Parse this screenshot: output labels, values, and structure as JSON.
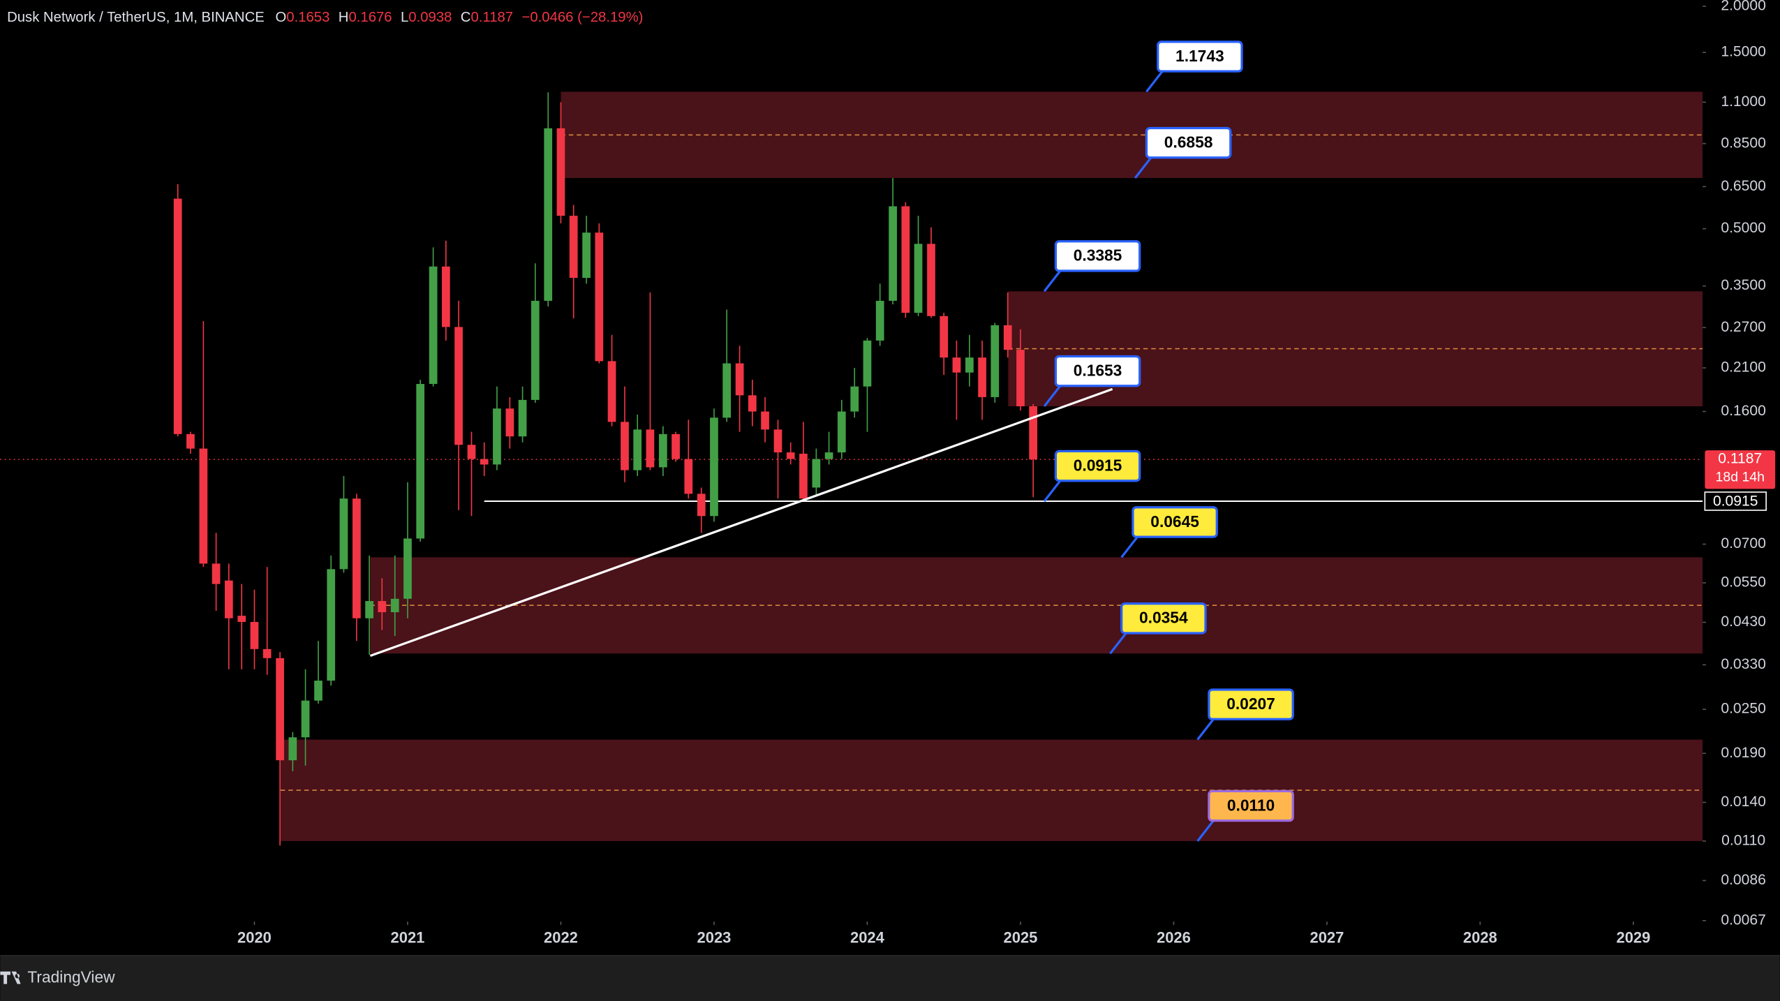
{
  "chart_data": {
    "type": "candlestick",
    "title": "Dusk Network / TetherUS, 1M, BINANCE",
    "ohlc_keys": [
      "O",
      "H",
      "L",
      "C"
    ],
    "change_label": "−0.0466 (−28.19%)",
    "countdown": "18d 14h",
    "brand": "TradingView",
    "log_scale": true,
    "grid": false,
    "up_color": "#43a047",
    "down_color": "#f23645",
    "zone_color": "#4a1219",
    "xlim": [
      2018.341,
      2029.452
    ],
    "ylim": [
      0.00666,
      2.08
    ],
    "xticks": [
      2020,
      2021,
      2022,
      2023,
      2024,
      2025,
      2026,
      2027,
      2028,
      2029
    ],
    "yticks": [
      {
        "value": 2,
        "label": "2.0000"
      },
      {
        "value": 1.5,
        "label": "1.5000"
      },
      {
        "value": 1.1,
        "label": "1.1000"
      },
      {
        "value": 0.85,
        "label": "0.8500"
      },
      {
        "value": 0.65,
        "label": "0.6500"
      },
      {
        "value": 0.5,
        "label": "0.5000"
      },
      {
        "value": 0.35,
        "label": "0.3500"
      },
      {
        "value": 0.27,
        "label": "0.2700"
      },
      {
        "value": 0.21,
        "label": "0.2100"
      },
      {
        "value": 0.16,
        "label": "0.1600"
      },
      {
        "value": 0.07,
        "label": "0.0700"
      },
      {
        "value": 0.055,
        "label": "0.0550"
      },
      {
        "value": 0.043,
        "label": "0.0430"
      },
      {
        "value": 0.033,
        "label": "0.0330"
      },
      {
        "value": 0.025,
        "label": "0.0250"
      },
      {
        "value": 0.019,
        "label": "0.0190"
      },
      {
        "value": 0.014,
        "label": "0.0140"
      },
      {
        "value": 0.011,
        "label": "0.0110"
      },
      0.0086,
      0.0067
    ],
    "x": [
      2019.5,
      2019.583,
      2019.667,
      2019.75,
      2019.833,
      2019.917,
      2020,
      2020.083,
      2020.167,
      2020.25,
      2020.333,
      2020.417,
      2020.5,
      2020.583,
      2020.667,
      2020.75,
      2020.833,
      2020.917,
      2021,
      2021.083,
      2021.167,
      2021.25,
      2021.333,
      2021.417,
      2021.5,
      2021.583,
      2021.667,
      2021.75,
      2021.833,
      2021.917,
      2022,
      2022.083,
      2022.167,
      2022.25,
      2022.333,
      2022.417,
      2022.5,
      2022.583,
      2022.667,
      2022.75,
      2022.833,
      2022.917,
      2023,
      2023.083,
      2023.167,
      2023.25,
      2023.333,
      2023.417,
      2023.5,
      2023.583,
      2023.667,
      2023.75,
      2023.833,
      2023.917,
      2024,
      2024.083,
      2024.167,
      2024.25,
      2024.333,
      2024.417,
      2024.5,
      2024.583,
      2024.667,
      2024.75,
      2024.833,
      2024.917,
      2025,
      2025.083
    ],
    "open": [
      0.603,
      0.139,
      0.127,
      0.062,
      0.0558,
      0.0448,
      0.0431,
      0.0364,
      0.0344,
      0.0182,
      0.021,
      0.0264,
      0.0299,
      0.0599,
      0.093,
      0.0441,
      0.0491,
      0.0458,
      0.0498,
      0.0725,
      0.19,
      0.395,
      0.271,
      0.13,
      0.119,
      0.115,
      0.163,
      0.137,
      0.172,
      0.319,
      0.935,
      0.542,
      0.368,
      0.488,
      0.219,
      0.15,
      0.111,
      0.143,
      0.113,
      0.139,
      0.119,
      0.0958,
      0.0834,
      0.154,
      0.216,
      0.177,
      0.16,
      0.143,
      0.124,
      0.123,
      0.0996,
      0.119,
      0.124,
      0.16,
      0.187,
      0.249,
      0.319,
      0.575,
      0.296,
      0.455,
      0.29,
      0.224,
      0.204,
      0.224,
      0.175,
      0.274,
      0.235,
      0.1653
    ],
    "high": [
      0.66,
      0.141,
      0.281,
      0.0751,
      0.062,
      0.0546,
      0.0527,
      0.0607,
      0.0357,
      0.0217,
      0.0321,
      0.0383,
      0.0652,
      0.107,
      0.0958,
      0.0652,
      0.0566,
      0.0652,
      0.103,
      0.195,
      0.445,
      0.464,
      0.319,
      0.141,
      0.132,
      0.187,
      0.175,
      0.187,
      0.403,
      1.17,
      1.1,
      0.58,
      0.542,
      0.517,
      0.258,
      0.187,
      0.157,
      0.336,
      0.146,
      0.141,
      0.152,
      0.0996,
      0.163,
      0.302,
      0.241,
      0.195,
      0.175,
      0.152,
      0.132,
      0.15,
      0.127,
      0.141,
      0.172,
      0.21,
      0.253,
      0.355,
      0.686,
      0.59,
      0.542,
      0.504,
      0.296,
      0.249,
      0.258,
      0.249,
      0.278,
      0.336,
      0.267,
      0.1676
    ],
    "low": [
      0.137,
      0.123,
      0.0607,
      0.0462,
      0.0321,
      0.0321,
      0.0321,
      0.031,
      0.0107,
      0.017,
      0.0176,
      0.0259,
      0.029,
      0.0586,
      0.0383,
      0.0351,
      0.041,
      0.0395,
      0.0441,
      0.0711,
      0.187,
      0.249,
      0.0865,
      0.0834,
      0.107,
      0.111,
      0.127,
      0.132,
      0.169,
      0.308,
      0.517,
      0.286,
      0.355,
      0.216,
      0.146,
      0.103,
      0.107,
      0.111,
      0.107,
      0.117,
      0.093,
      0.0751,
      0.0805,
      0.15,
      0.141,
      0.146,
      0.132,
      0.093,
      0.115,
      0.0915,
      0.0944,
      0.115,
      0.119,
      0.154,
      0.141,
      0.241,
      0.312,
      0.287,
      0.29,
      0.287,
      0.201,
      0.152,
      0.187,
      0.152,
      0.169,
      0.224,
      0.161,
      0.0938
    ],
    "close": [
      0.139,
      0.127,
      0.062,
      0.0546,
      0.0441,
      0.0431,
      0.0364,
      0.0344,
      0.0182,
      0.021,
      0.0264,
      0.0299,
      0.0599,
      0.093,
      0.0441,
      0.0491,
      0.0458,
      0.0498,
      0.0725,
      0.19,
      0.395,
      0.271,
      0.13,
      0.119,
      0.115,
      0.163,
      0.137,
      0.172,
      0.319,
      0.935,
      0.542,
      0.368,
      0.488,
      0.219,
      0.15,
      0.111,
      0.143,
      0.113,
      0.139,
      0.119,
      0.0958,
      0.0834,
      0.154,
      0.216,
      0.177,
      0.16,
      0.143,
      0.124,
      0.119,
      0.093,
      0.119,
      0.124,
      0.16,
      0.187,
      0.249,
      0.319,
      0.575,
      0.296,
      0.455,
      0.29,
      0.224,
      0.204,
      0.224,
      0.175,
      0.274,
      0.235,
      0.1653,
      0.1187
    ],
    "zones": [
      {
        "x_start": 2022,
        "top": 1.1743,
        "bottom": 0.6858,
        "mid": 0.897
      },
      {
        "x_start": 2024.92,
        "top": 0.3385,
        "bottom": 0.1653,
        "mid": 0.2366
      },
      {
        "x_start": 2020.756,
        "top": 0.0645,
        "bottom": 0.0354,
        "mid": 0.0478
      },
      {
        "x_start": 2020.17,
        "top": 0.0207,
        "bottom": 0.011,
        "mid": 0.0151
      }
    ],
    "trendline": {
      "x": [
        2020.756,
        2025.6
      ],
      "values": [
        0.0349,
        0.184
      ]
    },
    "horizontal_line": {
      "x_start": 2021.5,
      "value": 0.0915,
      "label": "0.0915"
    },
    "annotations": [
      {
        "value": 1.1743,
        "label": "1.1743",
        "color": "#ffffff"
      },
      {
        "value": 0.6858,
        "label": "0.6858",
        "color": "#ffffff"
      },
      {
        "value": 0.3385,
        "label": "0.3385",
        "color": "#ffffff"
      },
      {
        "value": 0.1653,
        "label": "0.1653",
        "color": "#ffffff"
      },
      {
        "value": 0.0915,
        "label": "0.0915",
        "color": "#ffeb3b"
      },
      {
        "value": 0.0645,
        "label": "0.0645",
        "color": "#ffeb3b"
      },
      {
        "value": 0.0354,
        "label": "0.0354",
        "color": "#ffeb3b"
      },
      {
        "value": 0.0207,
        "label": "0.0207",
        "color": "#ffeb3b"
      },
      {
        "value": 0.011,
        "label": "0.0110",
        "color": "#ffb74d"
      }
    ]
  }
}
